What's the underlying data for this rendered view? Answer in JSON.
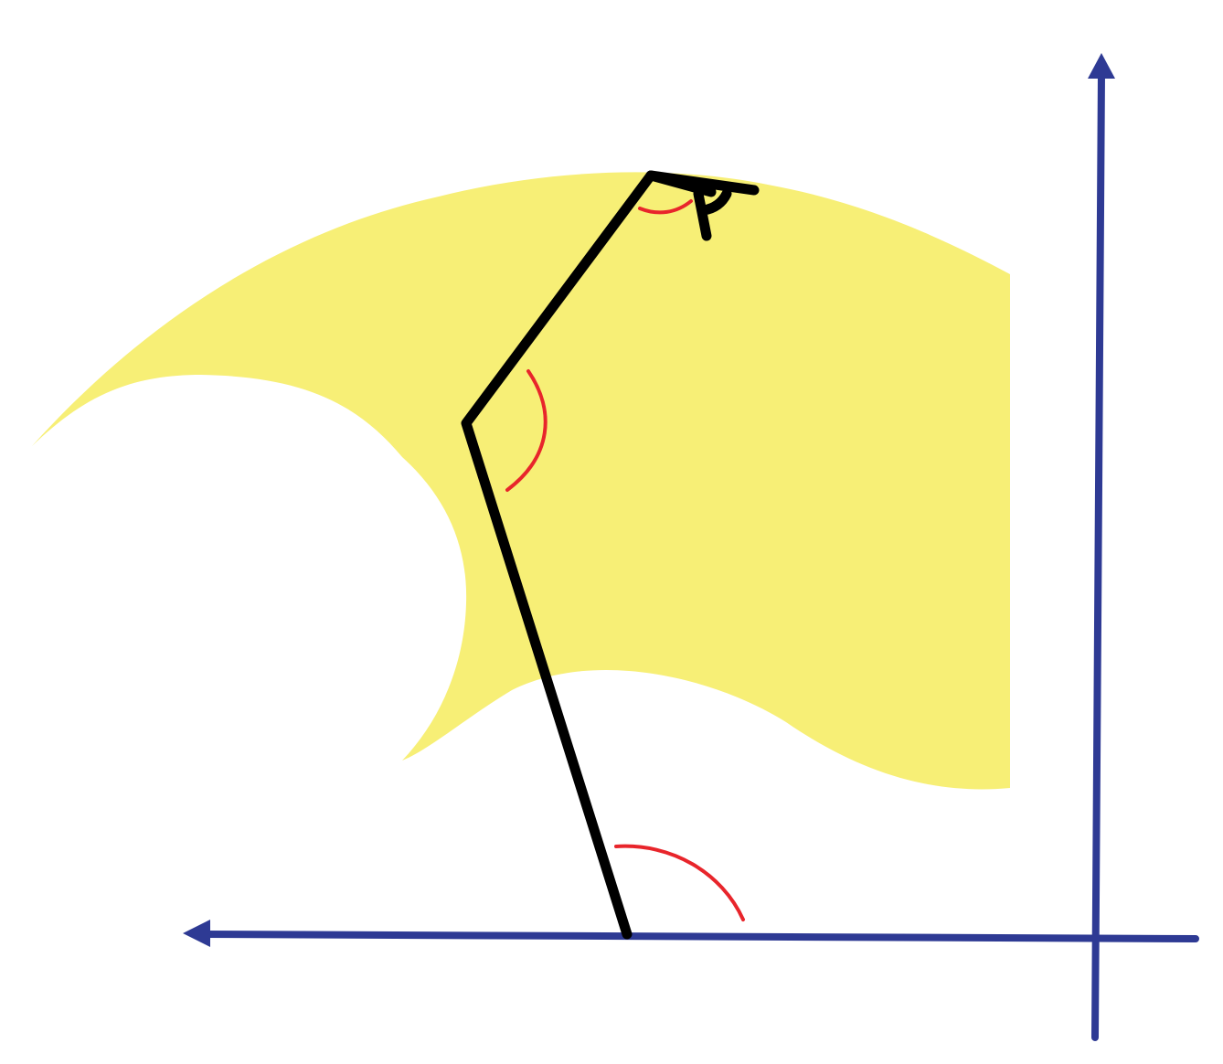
{
  "diagram": {
    "colors": {
      "background": "#ffffff",
      "workspace_fill": "#f7ef76",
      "axis": "#2e3a94",
      "arm": "#000000",
      "angle_marker": "#e8252b"
    },
    "elements": {
      "workspace": "reachable-region",
      "axes": [
        "horizontal-axis",
        "vertical-axis"
      ],
      "arm_links": [
        "link-1",
        "link-2",
        "link-3"
      ],
      "end_effector": "gripper",
      "angle_markers": [
        "base-joint-angle",
        "elbow-joint-angle",
        "wrist-joint-angle"
      ]
    }
  }
}
